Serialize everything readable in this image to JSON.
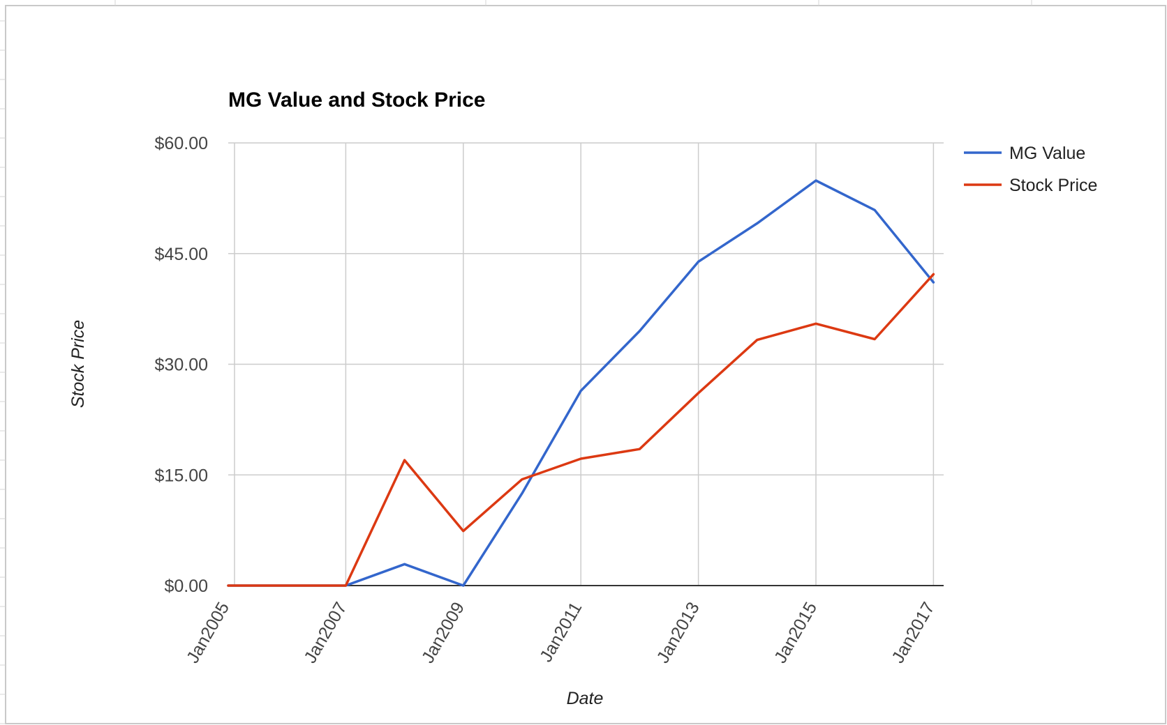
{
  "chart_data": {
    "type": "line",
    "title": "MG Value and Stock Price",
    "xlabel": "Date",
    "ylabel": "Stock Price",
    "x_ticks": [
      "Jan2005",
      "Jan2007",
      "Jan2009",
      "Jan2011",
      "Jan2013",
      "Jan2015",
      "Jan2017"
    ],
    "x": [
      "2005-01",
      "2006-01",
      "2007-01",
      "2008-01",
      "2009-01",
      "2010-01",
      "2011-01",
      "2012-01",
      "2013-01",
      "2014-01",
      "2015-01",
      "2016-01",
      "2017-01"
    ],
    "y_ticks": [
      "$0.00",
      "$15.00",
      "$30.00",
      "$45.00",
      "$60.00"
    ],
    "ylim": [
      0,
      60
    ],
    "grid": true,
    "legend_position": "right",
    "series": [
      {
        "name": "MG Value",
        "color": "#3366cc",
        "values": [
          0,
          0,
          0,
          2.9,
          0,
          12.5,
          26.4,
          34.5,
          43.9,
          49.1,
          54.9,
          50.9,
          41.1
        ]
      },
      {
        "name": "Stock Price",
        "color": "#dc3912",
        "values": [
          0,
          0,
          0,
          17.0,
          7.4,
          14.4,
          17.2,
          18.5,
          26.1,
          33.3,
          35.5,
          33.4,
          42.2
        ]
      }
    ]
  }
}
